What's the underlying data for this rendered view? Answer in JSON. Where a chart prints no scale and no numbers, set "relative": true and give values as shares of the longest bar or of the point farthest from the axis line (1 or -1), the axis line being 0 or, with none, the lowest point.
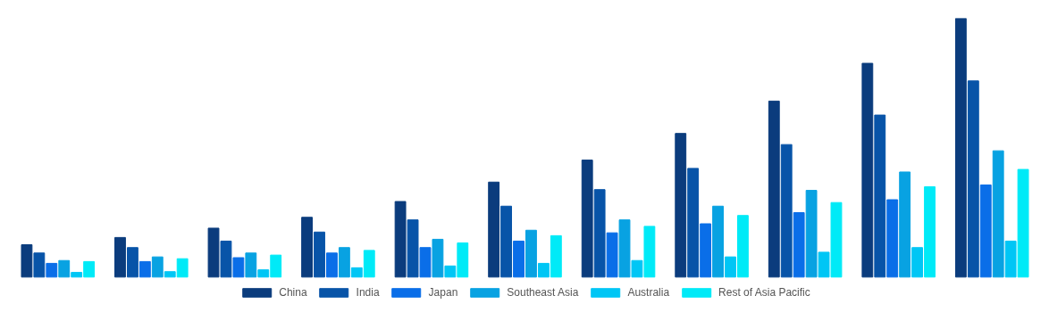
{
  "chart_data": {
    "type": "bar",
    "relative": true,
    "legend": "bottom",
    "categories": [
      null,
      null,
      null,
      null,
      null,
      null,
      null,
      null,
      null,
      null,
      null
    ],
    "series": [
      {
        "name": "China",
        "color": "#0b3c7d",
        "values": [
          0.125,
          0.153,
          0.189,
          0.231,
          0.292,
          0.367,
          0.452,
          0.555,
          0.68,
          0.826,
          1
        ]
      },
      {
        "name": "India",
        "color": "#0854a8",
        "values": [
          0.093,
          0.114,
          0.139,
          0.174,
          0.221,
          0.274,
          0.338,
          0.42,
          0.512,
          0.626,
          0.758
        ]
      },
      {
        "name": "Japan",
        "color": "#0a6ee8",
        "values": [
          0.053,
          0.06,
          0.075,
          0.093,
          0.114,
          0.139,
          0.171,
          0.206,
          0.249,
          0.299,
          0.356
        ]
      },
      {
        "name": "Southeast Asia",
        "color": "#08a2e2",
        "values": [
          0.064,
          0.078,
          0.093,
          0.114,
          0.146,
          0.181,
          0.221,
          0.274,
          0.335,
          0.406,
          0.488
        ]
      },
      {
        "name": "Australia",
        "color": "#00c6f5",
        "values": [
          0.018,
          0.021,
          0.028,
          0.036,
          0.043,
          0.053,
          0.064,
          0.078,
          0.096,
          0.114,
          0.139
        ]
      },
      {
        "name": "Rest of Asia Pacific",
        "color": "#00eaf7",
        "values": [
          0.06,
          0.071,
          0.085,
          0.103,
          0.132,
          0.16,
          0.196,
          0.238,
          0.288,
          0.349,
          0.416
        ]
      }
    ]
  }
}
